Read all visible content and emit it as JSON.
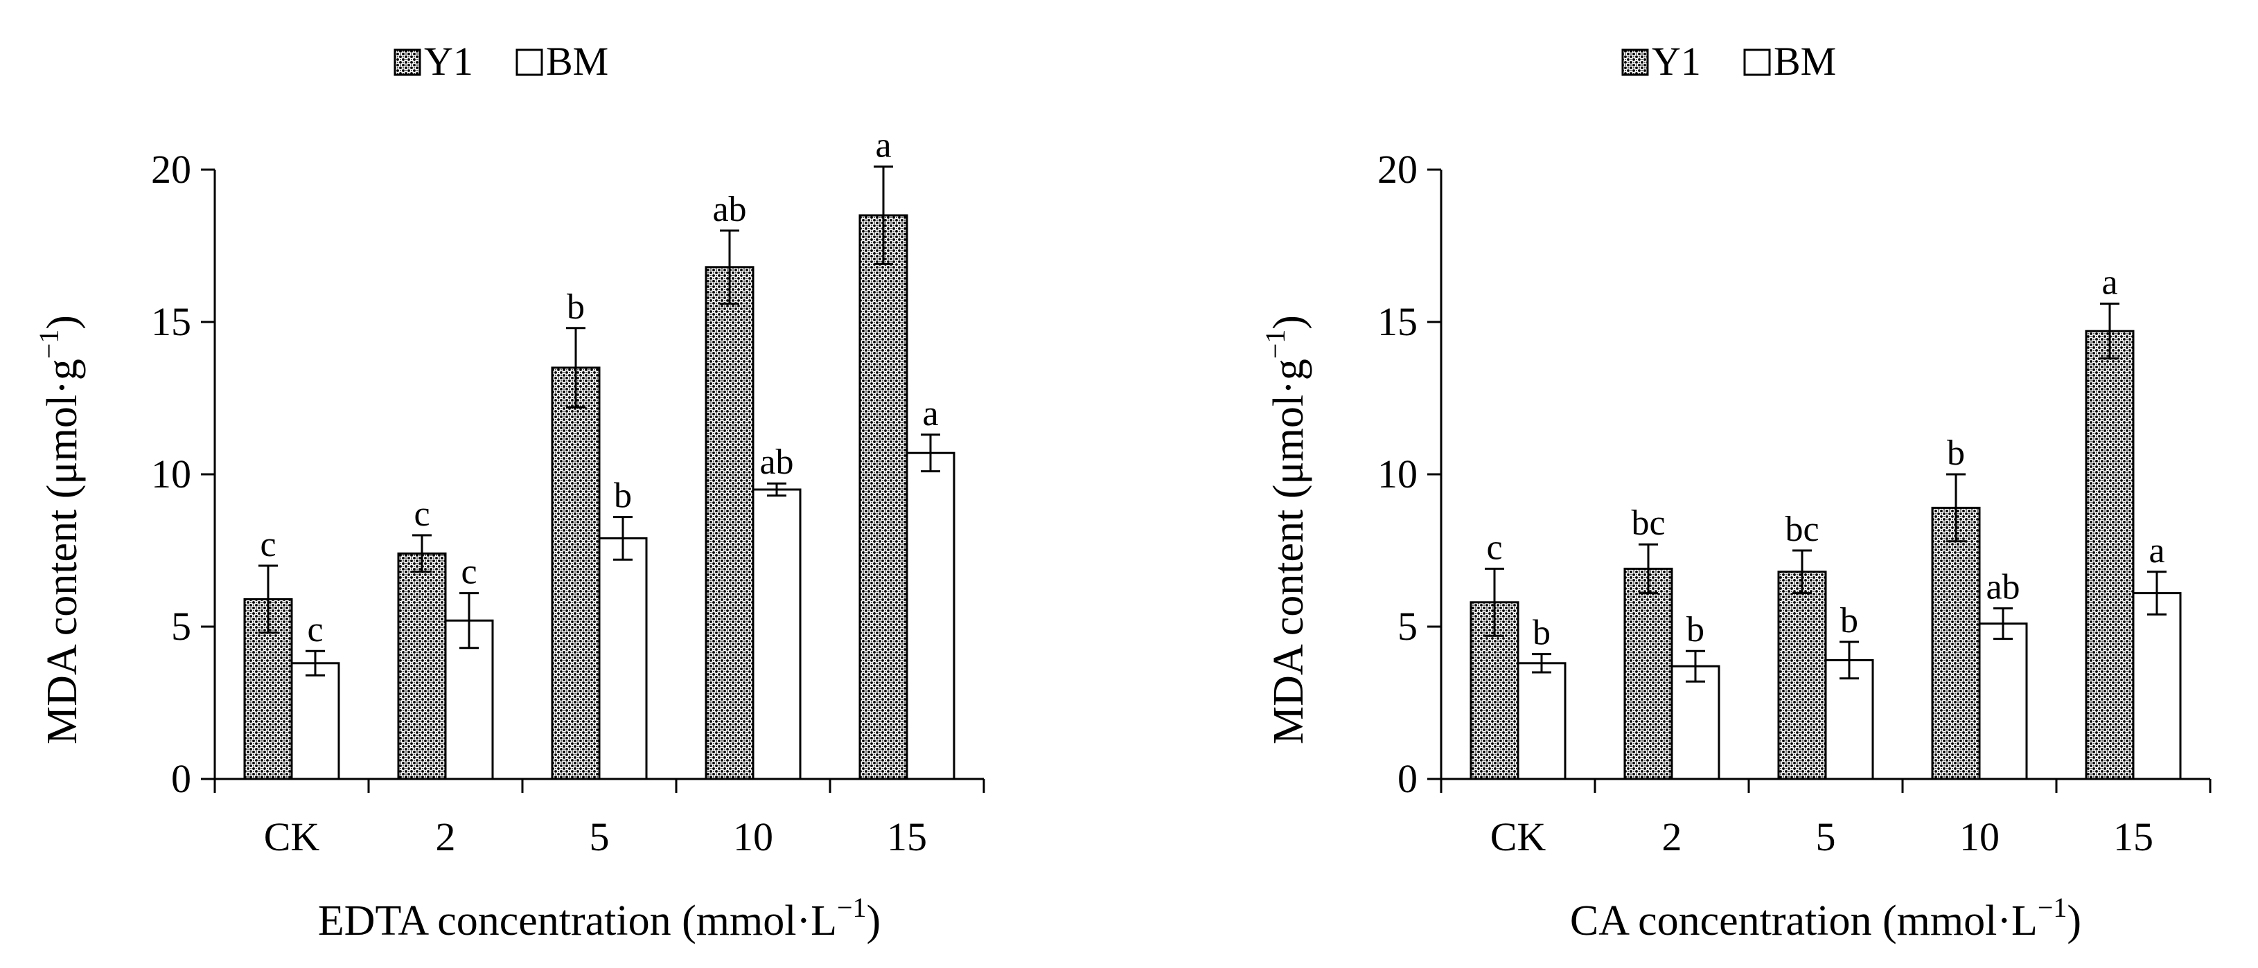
{
  "colors": {
    "y1_fill": "#6b6b6b",
    "bm_fill": "#ffffff",
    "stroke": "#000000"
  },
  "superscript": "−1",
  "chart_data": [
    {
      "type": "bar",
      "categories": [
        "CK",
        "2",
        "5",
        "10",
        "15"
      ],
      "series": [
        {
          "name": "Y1",
          "values": [
            5.9,
            7.4,
            13.5,
            16.8,
            18.5
          ],
          "errors": [
            1.1,
            0.6,
            1.3,
            1.2,
            1.6
          ],
          "labels": [
            "c",
            "c",
            "b",
            "ab",
            "a"
          ]
        },
        {
          "name": "BM",
          "values": [
            3.8,
            5.2,
            7.9,
            9.5,
            10.7
          ],
          "errors": [
            0.4,
            0.9,
            0.7,
            0.2,
            0.6
          ],
          "labels": [
            "c",
            "c",
            "b",
            "ab",
            "a"
          ]
        }
      ],
      "ylim": [
        0,
        20
      ],
      "yticks": [
        "0",
        "5",
        "10",
        "15",
        "20"
      ],
      "ylabel_main": "MDA content (μmol·g",
      "ylabel_tail": ")",
      "xlabel_main": "EDTA concentration (mmol·L",
      "xlabel_tail": ")",
      "legend": [
        "Y1",
        "BM"
      ],
      "legend_position": "top"
    },
    {
      "type": "bar",
      "categories": [
        "CK",
        "2",
        "5",
        "10",
        "15"
      ],
      "series": [
        {
          "name": "Y1",
          "values": [
            5.8,
            6.9,
            6.8,
            8.9,
            14.7
          ],
          "errors": [
            1.1,
            0.8,
            0.7,
            1.1,
            0.9
          ],
          "labels": [
            "c",
            "bc",
            "bc",
            "b",
            "a"
          ]
        },
        {
          "name": "BM",
          "values": [
            3.8,
            3.7,
            3.9,
            5.1,
            6.1
          ],
          "errors": [
            0.3,
            0.5,
            0.6,
            0.5,
            0.7
          ],
          "labels": [
            "b",
            "b",
            "b",
            "ab",
            "a"
          ]
        }
      ],
      "ylim": [
        0,
        20
      ],
      "yticks": [
        "0",
        "5",
        "10",
        "15",
        "20"
      ],
      "ylabel_main": "MDA content (μmol·g",
      "ylabel_tail": ")",
      "xlabel_main": "CA concentration (mmol·L",
      "xlabel_tail": ")",
      "legend": [
        "Y1",
        "BM"
      ],
      "legend_position": "top"
    }
  ]
}
